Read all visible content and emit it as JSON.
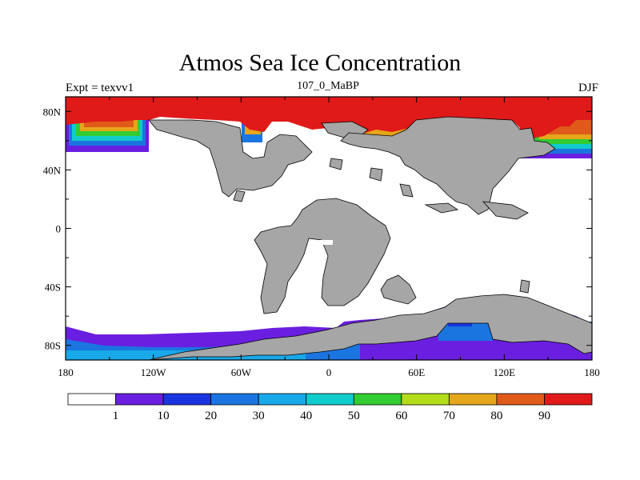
{
  "title": "Atmos Sea Ice Concentration",
  "subtitle_left": "Expt = texvv1",
  "subtitle_center": "107_0_MaBP",
  "subtitle_right": "DJF",
  "map": {
    "projection": "cylindrical-equidistant",
    "lon_range": [
      -180,
      180
    ],
    "lat_range": [
      -90,
      90
    ],
    "x_ticks": [
      {
        "value": -180,
        "label": "180"
      },
      {
        "value": -120,
        "label": "120W"
      },
      {
        "value": -60,
        "label": "60W"
      },
      {
        "value": 0,
        "label": "0"
      },
      {
        "value": 60,
        "label": "60E"
      },
      {
        "value": 120,
        "label": "120E"
      },
      {
        "value": 180,
        "label": "180"
      }
    ],
    "y_ticks": [
      {
        "value": 80,
        "label": "80N"
      },
      {
        "value": 40,
        "label": "40N"
      },
      {
        "value": 0,
        "label": "0"
      },
      {
        "value": -40,
        "label": "40S"
      },
      {
        "value": -80,
        "label": "80S"
      }
    ],
    "land_color": "#a6a6a6",
    "ocean_color": "#ffffff"
  },
  "colorbar": {
    "colors": [
      "#ffffff",
      "#6a1fe0",
      "#1a35e0",
      "#1a75e0",
      "#19a8e8",
      "#10cccc",
      "#33cc33",
      "#b3dc19",
      "#e6a619",
      "#e05a19",
      "#e01919"
    ],
    "labels": [
      "1",
      "10",
      "20",
      "30",
      "40",
      "50",
      "60",
      "70",
      "80",
      "90"
    ]
  }
}
